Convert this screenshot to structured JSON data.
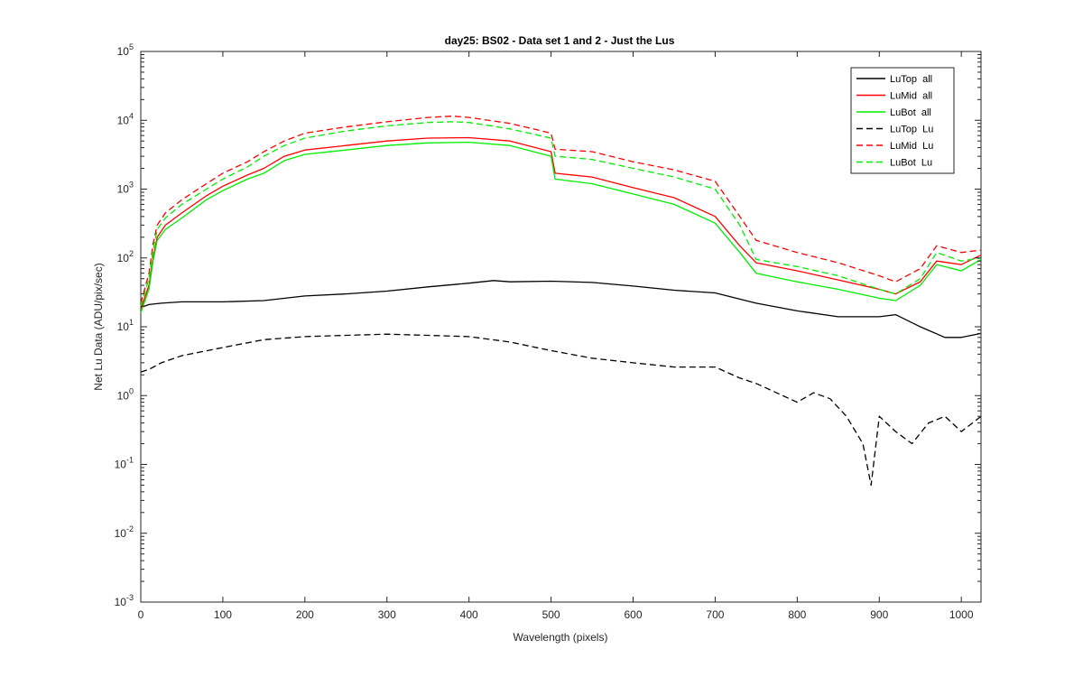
{
  "chart_data": {
    "type": "line",
    "title": "day25: BS02 - Data set 1 and 2 - Just the Lus",
    "xlabel": "Wavelength (pixels)",
    "ylabel": "Net Lu Data (ADU/pix/sec)",
    "xlim": [
      0,
      1024
    ],
    "ylim": [
      0.001,
      100000
    ],
    "yscale": "log",
    "grid": false,
    "legend_position": "top-right",
    "x_ticks": [
      "0",
      "100",
      "200",
      "300",
      "400",
      "500",
      "600",
      "700",
      "800",
      "900",
      "1000"
    ],
    "y_ticks": [
      {
        "base": "10",
        "exp": "-3"
      },
      {
        "base": "10",
        "exp": "-2"
      },
      {
        "base": "10",
        "exp": "-1"
      },
      {
        "base": "10",
        "exp": "0"
      },
      {
        "base": "10",
        "exp": "1"
      },
      {
        "base": "10",
        "exp": "2"
      },
      {
        "base": "10",
        "exp": "3"
      },
      {
        "base": "10",
        "exp": "4"
      },
      {
        "base": "10",
        "exp": "5"
      }
    ],
    "series": [
      {
        "name": "LuTop  all",
        "color": "#000000",
        "dash": false,
        "x": [
          0,
          10,
          25,
          50,
          100,
          150,
          200,
          250,
          300,
          350,
          400,
          430,
          450,
          500,
          550,
          600,
          650,
          700,
          750,
          800,
          850,
          900,
          920,
          950,
          980,
          1000,
          1024
        ],
        "y": [
          19,
          21,
          22,
          23,
          23,
          24,
          28,
          30,
          33,
          38,
          43,
          47,
          45,
          46,
          44,
          39,
          34,
          31,
          22,
          17,
          14,
          14,
          15,
          10,
          7,
          7,
          8
        ]
      },
      {
        "name": "LuMid  all",
        "color": "#ff0000",
        "dash": false,
        "x": [
          0,
          10,
          15,
          20,
          30,
          50,
          80,
          100,
          130,
          150,
          175,
          200,
          250,
          300,
          350,
          400,
          450,
          500,
          505,
          550,
          600,
          650,
          700,
          730,
          750,
          800,
          850,
          900,
          920,
          950,
          970,
          1000,
          1024
        ],
        "y": [
          18,
          40,
          100,
          200,
          300,
          450,
          800,
          1100,
          1600,
          2000,
          3000,
          3700,
          4300,
          5000,
          5500,
          5600,
          5000,
          3500,
          1700,
          1500,
          1050,
          750,
          400,
          150,
          85,
          65,
          48,
          35,
          30,
          45,
          90,
          80,
          110
        ]
      },
      {
        "name": "LuBot  all",
        "color": "#00ee00",
        "dash": false,
        "x": [
          0,
          10,
          15,
          20,
          30,
          50,
          80,
          100,
          130,
          150,
          175,
          200,
          250,
          300,
          350,
          400,
          450,
          500,
          505,
          550,
          600,
          650,
          700,
          730,
          750,
          800,
          850,
          900,
          920,
          950,
          970,
          1000,
          1024
        ],
        "y": [
          16,
          35,
          90,
          180,
          260,
          380,
          700,
          950,
          1400,
          1700,
          2600,
          3200,
          3700,
          4300,
          4700,
          4800,
          4300,
          3000,
          1400,
          1200,
          850,
          600,
          320,
          120,
          60,
          45,
          35,
          26,
          24,
          40,
          80,
          65,
          95
        ]
      },
      {
        "name": "LuTop  Lu",
        "color": "#000000",
        "dash": true,
        "x": [
          0,
          10,
          25,
          50,
          100,
          150,
          200,
          250,
          300,
          350,
          400,
          450,
          500,
          550,
          600,
          650,
          700,
          730,
          750,
          800,
          820,
          840,
          860,
          880,
          890,
          900,
          920,
          940,
          960,
          980,
          1000,
          1024
        ],
        "y": [
          2.2,
          2.4,
          3.0,
          3.8,
          5.0,
          6.5,
          7.2,
          7.5,
          7.8,
          7.5,
          7.2,
          6.0,
          4.5,
          3.5,
          3.0,
          2.6,
          2.6,
          1.8,
          1.5,
          0.8,
          1.1,
          0.9,
          0.5,
          0.2,
          0.05,
          0.5,
          0.3,
          0.2,
          0.4,
          0.5,
          0.3,
          0.5
        ]
      },
      {
        "name": "LuMid  Lu",
        "color": "#ff0000",
        "dash": true,
        "x": [
          0,
          10,
          15,
          20,
          30,
          50,
          80,
          100,
          130,
          150,
          175,
          200,
          250,
          300,
          350,
          380,
          400,
          450,
          500,
          505,
          550,
          600,
          650,
          700,
          730,
          750,
          800,
          850,
          900,
          920,
          950,
          970,
          1000,
          1024
        ],
        "y": [
          22,
          60,
          160,
          300,
          450,
          700,
          1200,
          1700,
          2500,
          3500,
          5000,
          6500,
          8000,
          9500,
          11000,
          11500,
          11000,
          9000,
          6500,
          3800,
          3500,
          2500,
          1900,
          1300,
          400,
          180,
          120,
          85,
          55,
          45,
          70,
          150,
          120,
          130
        ]
      },
      {
        "name": "LuBot  Lu",
        "color": "#00ee00",
        "dash": true,
        "x": [
          0,
          10,
          15,
          20,
          30,
          50,
          80,
          100,
          130,
          150,
          175,
          200,
          250,
          300,
          350,
          380,
          400,
          450,
          500,
          505,
          550,
          600,
          650,
          700,
          730,
          750,
          800,
          850,
          900,
          920,
          950,
          970,
          1000,
          1024
        ],
        "y": [
          20,
          50,
          130,
          260,
          380,
          600,
          1000,
          1400,
          2100,
          3000,
          4300,
          5500,
          7000,
          8300,
          9300,
          9500,
          9300,
          7500,
          5500,
          3000,
          2700,
          2000,
          1500,
          1000,
          300,
          95,
          75,
          55,
          35,
          30,
          50,
          120,
          90,
          100
        ]
      }
    ]
  }
}
